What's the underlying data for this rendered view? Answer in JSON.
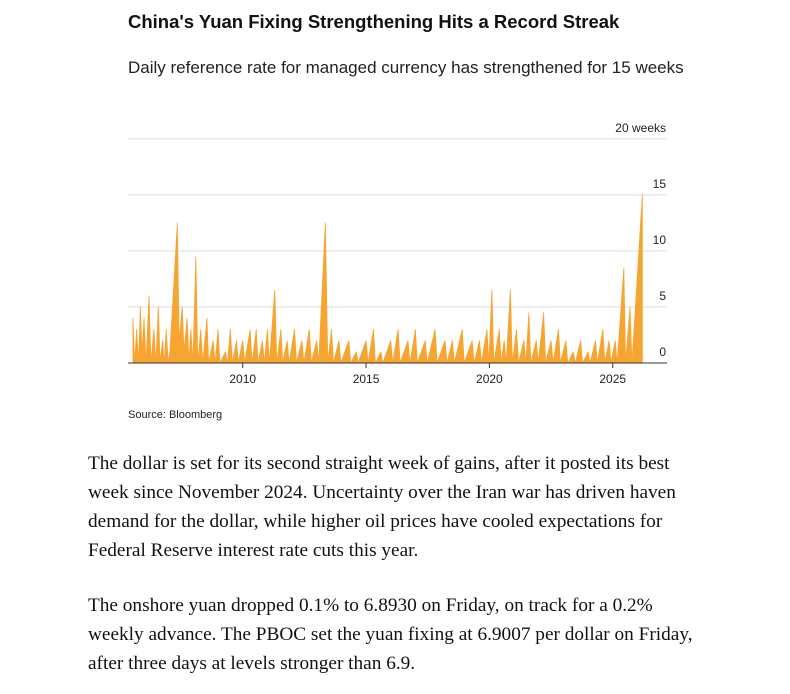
{
  "chart_data": {
    "type": "area",
    "title": "China's Yuan Fixing Strengthening Hits a Record Streak",
    "subtitle": "Daily reference rate for managed currency has strengthened for 15 weeks",
    "source": "Source: Bloomberg",
    "color": "#f7a531",
    "grid": true,
    "xlim": [
      2005.35,
      2027.2
    ],
    "xticks": [
      2010,
      2015,
      2020,
      2025
    ],
    "ylim": [
      0,
      20
    ],
    "yticks": [
      0,
      5,
      10,
      15,
      {
        "value": 20,
        "label": "20 weeks"
      }
    ],
    "x": [
      2005.55,
      2005.62,
      2005.7,
      2005.78,
      2005.85,
      2005.92,
      2006.0,
      2006.08,
      2006.2,
      2006.28,
      2006.4,
      2006.48,
      2006.58,
      2006.65,
      2006.75,
      2006.82,
      2006.9,
      2006.98,
      2007.05,
      2007.35,
      2007.42,
      2007.55,
      2007.62,
      2007.75,
      2007.82,
      2007.9,
      2007.98,
      2008.1,
      2008.18,
      2008.3,
      2008.38,
      2008.55,
      2008.62,
      2008.8,
      2008.88,
      2009.0,
      2009.08,
      2009.3,
      2009.38,
      2009.5,
      2009.58,
      2009.75,
      2009.82,
      2010.0,
      2010.08,
      2010.3,
      2010.38,
      2010.55,
      2010.62,
      2010.8,
      2010.88,
      2011.0,
      2011.08,
      2011.3,
      2011.38,
      2011.55,
      2011.62,
      2011.8,
      2011.88,
      2012.1,
      2012.18,
      2012.4,
      2012.48,
      2012.7,
      2012.78,
      2013.0,
      2013.08,
      2013.35,
      2013.45,
      2013.6,
      2013.68,
      2013.9,
      2013.98,
      2014.3,
      2014.38,
      2014.6,
      2014.68,
      2015.0,
      2015.08,
      2015.3,
      2015.38,
      2015.6,
      2015.68,
      2016.0,
      2016.08,
      2016.3,
      2016.38,
      2016.7,
      2016.78,
      2017.0,
      2017.08,
      2017.4,
      2017.48,
      2017.8,
      2017.88,
      2018.2,
      2018.28,
      2018.5,
      2018.58,
      2018.9,
      2018.98,
      2019.3,
      2019.38,
      2019.6,
      2019.68,
      2019.9,
      2019.98,
      2020.1,
      2020.18,
      2020.4,
      2020.48,
      2020.6,
      2020.68,
      2020.85,
      2020.93,
      2021.1,
      2021.18,
      2021.4,
      2021.48,
      2021.6,
      2021.68,
      2021.9,
      2021.98,
      2022.2,
      2022.28,
      2022.5,
      2022.58,
      2022.8,
      2022.88,
      2023.1,
      2023.18,
      2023.4,
      2023.48,
      2023.7,
      2023.78,
      2024.0,
      2024.08,
      2024.3,
      2024.38,
      2024.6,
      2024.68,
      2024.85,
      2024.93,
      2025.1,
      2025.18,
      2025.45,
      2025.52,
      2025.7,
      2025.78,
      2026.2
    ],
    "values": [
      4,
      0,
      3,
      0,
      5,
      1,
      4,
      0,
      6,
      0,
      3,
      0,
      5,
      0,
      2,
      0,
      3,
      0,
      1,
      12.5,
      2,
      5,
      1,
      4,
      0,
      3,
      0,
      9.5,
      0,
      3,
      0,
      4,
      0,
      2,
      0,
      3,
      0,
      1,
      0,
      3,
      0,
      2,
      0,
      2,
      0,
      3,
      0,
      3,
      0,
      2,
      0,
      3,
      0,
      6.5,
      0,
      3,
      0,
      2,
      0,
      3,
      0,
      2,
      0,
      3,
      0,
      2,
      0,
      12.5,
      0,
      3,
      0,
      2,
      0,
      2,
      0,
      1,
      0,
      2,
      0,
      3,
      0,
      1,
      0,
      2,
      0,
      3,
      0,
      2,
      0,
      3,
      0,
      2,
      0,
      3,
      0,
      2,
      0,
      2,
      0,
      3,
      0,
      2,
      0,
      2,
      0,
      3,
      0,
      6.5,
      0,
      3,
      0,
      2,
      0,
      6.5,
      0,
      3,
      0,
      2,
      0,
      4.5,
      0,
      2,
      0,
      4.5,
      0,
      2,
      0,
      3,
      0,
      2,
      0,
      1,
      0,
      2,
      0,
      1,
      0,
      2,
      0,
      3,
      0,
      2,
      0,
      2,
      0,
      8.5,
      0,
      5,
      0,
      15
    ]
  },
  "article": {
    "paragraphs": [
      "The dollar is set for its second straight week of gains, after it posted its best week since November 2024. Uncertainty over the Iran war has driven haven demand for the dollar, while higher oil prices have cooled expectations for Federal Reserve interest rate cuts this year.",
      "The onshore yuan dropped 0.1% to 6.8930 on Friday, on track for a 0.2% weekly advance. The PBOC set the yuan fixing at 6.9007 per dollar on Friday, after three days at levels stronger than 6.9."
    ]
  }
}
